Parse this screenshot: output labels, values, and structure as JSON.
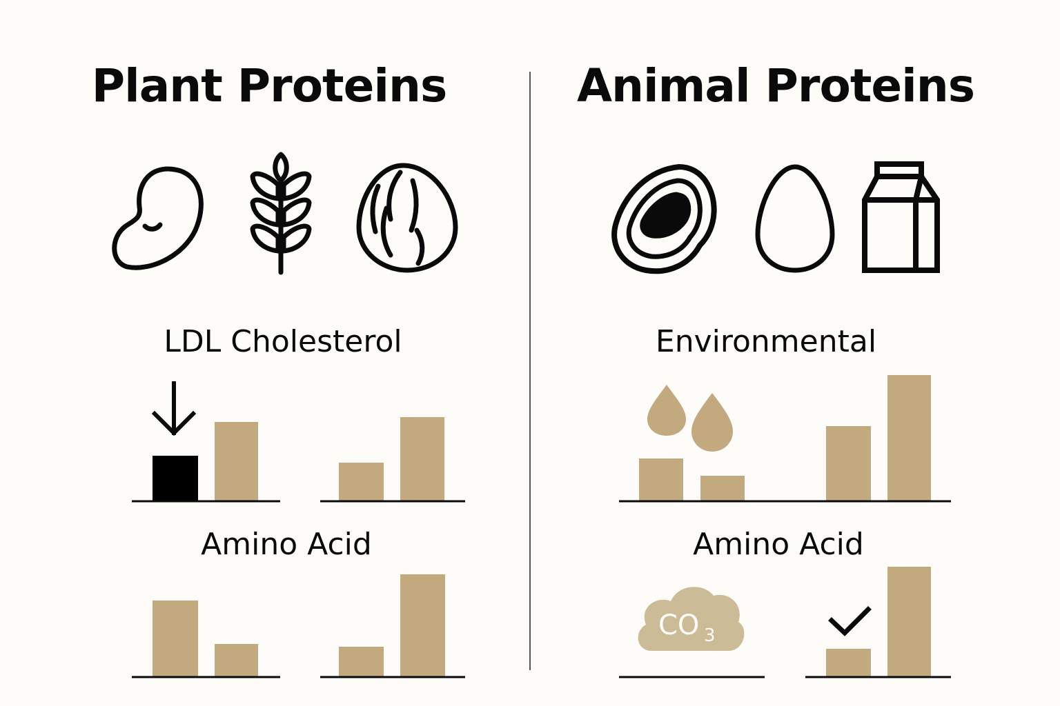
{
  "left_panel": {
    "title": "Plant Proteins",
    "icons": [
      "bean-icon",
      "wheat-icon",
      "nut-icon"
    ],
    "ldl_label": "LDL Cholesterol",
    "amino_label": "Amino Acid"
  },
  "right_panel": {
    "title": "Animal Proteins",
    "icons": [
      "steak-icon",
      "egg-icon",
      "milk-carton-icon"
    ],
    "env_label": "Environmental",
    "amino_label": "Amino Acid",
    "co2_label": "CO",
    "co2_subscript": "3"
  },
  "colors": {
    "bar": "#c2aa7e",
    "highlight_bar": "#000000",
    "ink": "#0a0a0a",
    "background": "#fdfcf8",
    "cloud": "#cbbb97",
    "cloud_text": "#fdfcf8"
  }
}
